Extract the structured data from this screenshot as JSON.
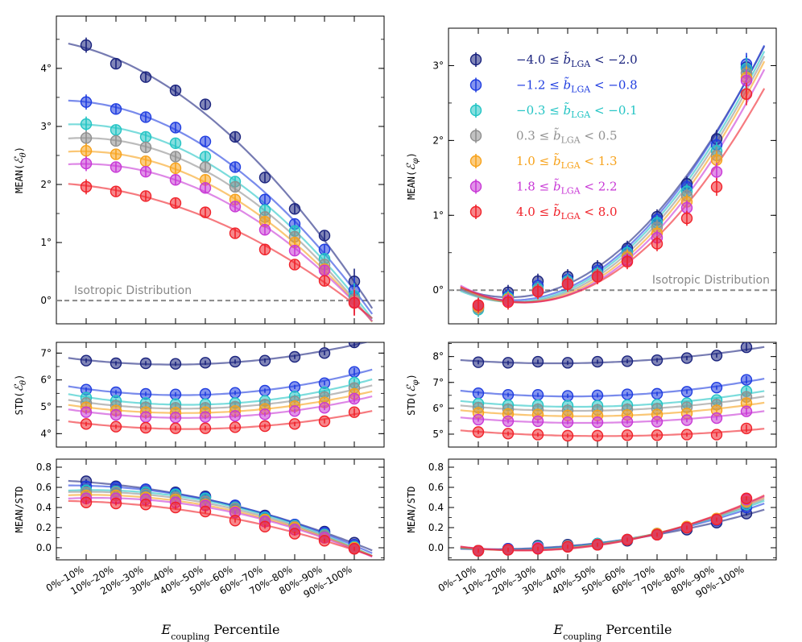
{
  "chart_data": {
    "type": "scatter",
    "categories": [
      "0%–10%",
      "10%–20%",
      "20%–30%",
      "30%–40%",
      "40%–50%",
      "50%–60%",
      "60%–70%",
      "70%–80%",
      "80%–90%",
      "90%–100%"
    ],
    "xlabel": "E_coupling Percentile",
    "xlabel_parts": {
      "main": "E",
      "sub": "coupling",
      "rest": " Percentile"
    },
    "series": [
      {
        "name": "−4.0 ≤ b̃_LGA < −2.0",
        "label": {
          "lo": "−4.0",
          "hi": "−2.0"
        },
        "color": "#1a237e"
      },
      {
        "name": "−1.2 ≤ b̃_LGA < −0.8",
        "label": {
          "lo": "−1.2",
          "hi": "−0.8"
        },
        "color": "#1f3de0"
      },
      {
        "name": "−0.3 ≤ b̃_LGA < −0.1",
        "label": {
          "lo": "−0.3",
          "hi": "−0.1"
        },
        "color": "#23c4c4"
      },
      {
        "name": "0.3 ≤ b̃_LGA < 0.5",
        "label": {
          "lo": "0.3",
          "hi": "0.5"
        },
        "color": "#909090"
      },
      {
        "name": "1.0 ≤ b̃_LGA < 1.3",
        "label": {
          "lo": "1.0",
          "hi": "1.3"
        },
        "color": "#f7a21b"
      },
      {
        "name": "1.8 ≤ b̃_LGA < 2.2",
        "label": {
          "lo": "1.8",
          "hi": "2.2"
        },
        "color": "#c838d6"
      },
      {
        "name": "4.0 ≤ b̃_LGA < 8.0",
        "label": {
          "lo": "4.0",
          "hi": "8.0"
        },
        "color": "#f0222a"
      }
    ],
    "annotation": "Isotropic Distribution",
    "panels": [
      {
        "id": "mean_theta",
        "ylabel": "MEAN(ℰ_θ)",
        "ylabel_parts": {
          "pre": "MEAN(",
          "sym": "ℰ",
          "sub": "θ",
          "post": ")"
        },
        "ylim": [
          -0.4,
          4.9
        ],
        "yticks": [
          0,
          1,
          2,
          3,
          4
        ],
        "tick_suffix": "°",
        "isotropic_line": 0,
        "show_annotation": true,
        "values": [
          [
            4.4,
            4.08,
            3.85,
            3.62,
            3.38,
            2.82,
            2.12,
            1.58,
            1.12,
            0.33
          ],
          [
            3.42,
            3.3,
            3.16,
            2.98,
            2.74,
            2.3,
            1.74,
            1.32,
            0.88,
            0.18
          ],
          [
            3.04,
            2.94,
            2.82,
            2.71,
            2.48,
            2.05,
            1.56,
            1.2,
            0.72,
            0.08
          ],
          [
            2.8,
            2.75,
            2.64,
            2.48,
            2.3,
            1.96,
            1.44,
            1.1,
            0.62,
            0.02
          ],
          [
            2.58,
            2.52,
            2.4,
            2.28,
            2.08,
            1.74,
            1.36,
            1.0,
            0.54,
            -0.02
          ],
          [
            2.36,
            2.3,
            2.22,
            2.08,
            1.94,
            1.62,
            1.22,
            0.86,
            0.52,
            -0.03
          ],
          [
            1.96,
            1.88,
            1.8,
            1.68,
            1.52,
            1.16,
            0.88,
            0.62,
            0.34,
            -0.04
          ]
        ],
        "errors": [
          0.13,
          0.08,
          0.08,
          0.08,
          0.08,
          0.08,
          0.08,
          0.08,
          0.08,
          0.22
        ]
      },
      {
        "id": "std_theta",
        "ylabel": "STD(ℰ_θ)",
        "ylabel_parts": {
          "pre": "STD(",
          "sym": "ℰ",
          "sub": "θ",
          "post": ")"
        },
        "ylim": [
          3.5,
          7.4
        ],
        "yticks": [
          4,
          5,
          6,
          7
        ],
        "tick_suffix": "°",
        "values": [
          [
            6.72,
            6.62,
            6.62,
            6.6,
            6.64,
            6.68,
            6.72,
            6.86,
            7.0,
            7.4
          ],
          [
            5.64,
            5.54,
            5.48,
            5.46,
            5.48,
            5.52,
            5.6,
            5.74,
            5.88,
            6.3
          ],
          [
            5.34,
            5.22,
            5.14,
            5.1,
            5.1,
            5.14,
            5.22,
            5.38,
            5.54,
            5.9
          ],
          [
            5.14,
            5.04,
            4.98,
            4.96,
            4.96,
            5.0,
            5.08,
            5.2,
            5.36,
            5.7
          ],
          [
            4.98,
            4.86,
            4.8,
            4.78,
            4.8,
            4.84,
            4.92,
            5.02,
            5.16,
            5.48
          ],
          [
            4.8,
            4.7,
            4.62,
            4.6,
            4.62,
            4.66,
            4.72,
            4.84,
            4.96,
            5.3
          ],
          [
            4.36,
            4.26,
            4.22,
            4.2,
            4.2,
            4.24,
            4.28,
            4.36,
            4.46,
            4.8
          ]
        ],
        "errors": [
          0.08,
          0.08,
          0.08,
          0.08,
          0.08,
          0.08,
          0.08,
          0.08,
          0.08,
          0.15
        ]
      },
      {
        "id": "ratio_theta",
        "ylabel": "MEAN/STD",
        "ylim": [
          -0.12,
          0.88
        ],
        "yticks": [
          0.0,
          0.2,
          0.4,
          0.6,
          0.8
        ],
        "tick_suffix": "",
        "decimals": 1,
        "values": [
          [
            0.66,
            0.61,
            0.58,
            0.55,
            0.51,
            0.42,
            0.32,
            0.23,
            0.16,
            0.05
          ],
          [
            0.61,
            0.6,
            0.58,
            0.54,
            0.5,
            0.42,
            0.31,
            0.23,
            0.15,
            0.03
          ],
          [
            0.57,
            0.56,
            0.55,
            0.53,
            0.49,
            0.4,
            0.3,
            0.22,
            0.13,
            0.01
          ],
          [
            0.55,
            0.55,
            0.53,
            0.5,
            0.46,
            0.39,
            0.28,
            0.21,
            0.12,
            0.0
          ],
          [
            0.52,
            0.52,
            0.5,
            0.48,
            0.43,
            0.36,
            0.28,
            0.2,
            0.1,
            0.0
          ],
          [
            0.49,
            0.49,
            0.48,
            0.45,
            0.42,
            0.35,
            0.26,
            0.18,
            0.1,
            -0.01
          ],
          [
            0.45,
            0.44,
            0.43,
            0.4,
            0.36,
            0.27,
            0.21,
            0.14,
            0.07,
            -0.01
          ]
        ],
        "errors": [
          0.02,
          0.02,
          0.02,
          0.02,
          0.02,
          0.02,
          0.02,
          0.02,
          0.02,
          0.02
        ]
      },
      {
        "id": "mean_phi",
        "ylabel": "MEAN(ℰ_φ)",
        "ylabel_parts": {
          "pre": "MEAN(",
          "sym": "ℰ",
          "sub": "φ",
          "post": ")"
        },
        "ylim": [
          -0.45,
          3.5
        ],
        "yticks": [
          0,
          1,
          2,
          3
        ],
        "tick_suffix": "°",
        "isotropic_line": 0,
        "show_annotation": true,
        "legend": "top-left",
        "values": [
          [
            -0.22,
            -0.03,
            0.12,
            0.18,
            0.3,
            0.56,
            0.98,
            1.42,
            2.02,
            2.98
          ],
          [
            -0.24,
            -0.08,
            0.06,
            0.14,
            0.26,
            0.52,
            0.94,
            1.38,
            1.94,
            3.02
          ],
          [
            -0.26,
            -0.1,
            0.02,
            0.12,
            0.22,
            0.5,
            0.9,
            1.32,
            1.86,
            2.96
          ],
          [
            -0.24,
            -0.12,
            0.0,
            0.1,
            0.2,
            0.46,
            0.84,
            1.26,
            1.8,
            2.9
          ],
          [
            -0.22,
            -0.12,
            -0.02,
            0.08,
            0.18,
            0.44,
            0.76,
            1.18,
            1.74,
            2.84
          ],
          [
            -0.2,
            -0.14,
            -0.02,
            0.08,
            0.18,
            0.4,
            0.7,
            1.1,
            1.58,
            2.8
          ],
          [
            -0.2,
            -0.16,
            -0.02,
            0.08,
            0.18,
            0.38,
            0.62,
            0.96,
            1.38,
            2.62
          ]
        ],
        "errors": [
          0.1,
          0.1,
          0.1,
          0.1,
          0.1,
          0.1,
          0.1,
          0.1,
          0.12,
          0.15
        ]
      },
      {
        "id": "std_phi",
        "ylabel": "STD(ℰ_φ)",
        "ylabel_parts": {
          "pre": "STD(",
          "sym": "ℰ",
          "sub": "φ",
          "post": ")"
        },
        "ylim": [
          4.5,
          8.55
        ],
        "yticks": [
          5,
          6,
          7,
          8
        ],
        "tick_suffix": "°",
        "values": [
          [
            7.78,
            7.76,
            7.8,
            7.76,
            7.8,
            7.82,
            7.86,
            7.94,
            8.04,
            8.36
          ],
          [
            6.58,
            6.52,
            6.52,
            6.48,
            6.5,
            6.54,
            6.56,
            6.64,
            6.8,
            7.1
          ],
          [
            6.18,
            6.12,
            6.12,
            6.1,
            6.1,
            6.12,
            6.14,
            6.2,
            6.32,
            6.66
          ],
          [
            6.02,
            5.96,
            5.96,
            5.92,
            5.94,
            5.96,
            5.98,
            6.04,
            6.14,
            6.44
          ],
          [
            5.82,
            5.78,
            5.76,
            5.72,
            5.72,
            5.74,
            5.76,
            5.8,
            5.92,
            6.2
          ],
          [
            5.56,
            5.5,
            5.5,
            5.46,
            5.46,
            5.48,
            5.48,
            5.54,
            5.62,
            5.88
          ],
          [
            5.08,
            5.02,
            4.98,
            4.94,
            4.94,
            4.96,
            4.96,
            4.98,
            4.98,
            5.22
          ]
        ],
        "errors": [
          0.08,
          0.08,
          0.08,
          0.08,
          0.08,
          0.08,
          0.08,
          0.08,
          0.08,
          0.15
        ]
      },
      {
        "id": "ratio_phi",
        "ylabel": "MEAN/STD",
        "ylim": [
          -0.12,
          0.88
        ],
        "yticks": [
          0.0,
          0.2,
          0.4,
          0.6,
          0.8
        ],
        "tick_suffix": "",
        "decimals": 1,
        "values": [
          [
            -0.03,
            -0.01,
            0.02,
            0.03,
            0.04,
            0.07,
            0.13,
            0.18,
            0.25,
            0.34
          ],
          [
            -0.03,
            -0.01,
            0.01,
            0.02,
            0.04,
            0.08,
            0.14,
            0.2,
            0.27,
            0.4
          ],
          [
            -0.03,
            -0.02,
            0.01,
            0.02,
            0.04,
            0.08,
            0.14,
            0.2,
            0.28,
            0.43
          ],
          [
            -0.03,
            -0.02,
            0.0,
            0.02,
            0.03,
            0.08,
            0.14,
            0.2,
            0.28,
            0.45
          ],
          [
            -0.03,
            -0.02,
            0.0,
            0.01,
            0.03,
            0.08,
            0.14,
            0.21,
            0.29,
            0.46
          ],
          [
            -0.03,
            -0.02,
            0.0,
            0.01,
            0.03,
            0.08,
            0.13,
            0.2,
            0.28,
            0.48
          ],
          [
            -0.03,
            -0.02,
            -0.01,
            0.01,
            0.03,
            0.08,
            0.13,
            0.2,
            0.28,
            0.49
          ]
        ],
        "errors": [
          0.02,
          0.02,
          0.02,
          0.02,
          0.02,
          0.02,
          0.02,
          0.02,
          0.02,
          0.02
        ]
      }
    ]
  }
}
